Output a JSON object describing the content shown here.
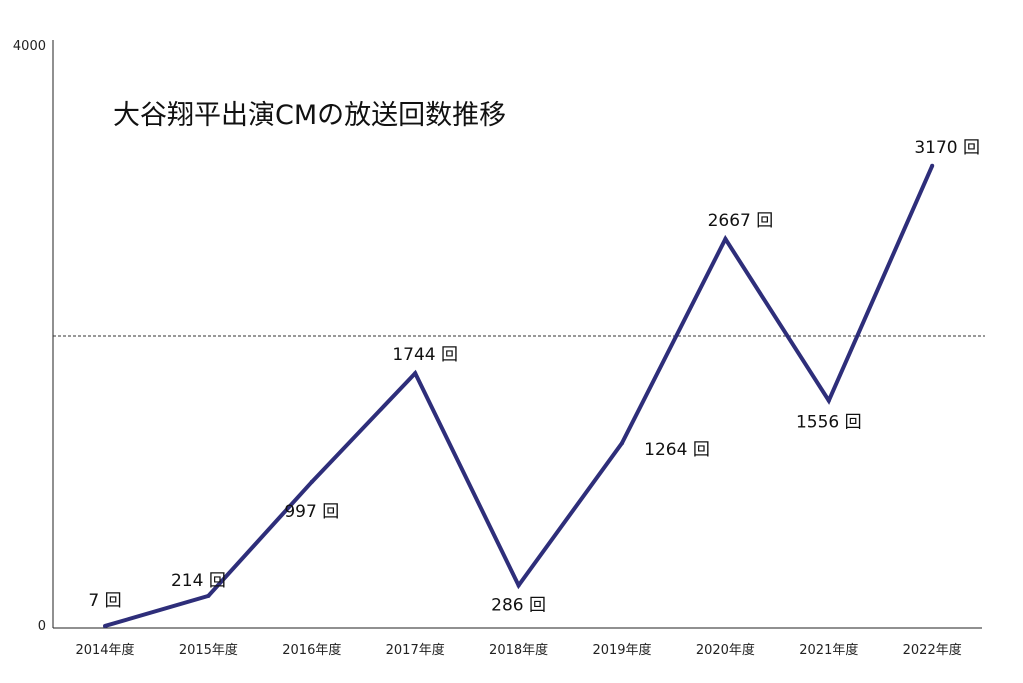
{
  "chart_data": {
    "type": "line",
    "title": "大谷翔平出演CMの放送回数推移",
    "xlabel": "",
    "ylabel": "",
    "categories": [
      "2014年度",
      "2015年度",
      "2016年度",
      "2017年度",
      "2018年度",
      "2019年度",
      "2020年度",
      "2021年度",
      "2022年度"
    ],
    "values": [
      7,
      214,
      997,
      1744,
      286,
      1264,
      2667,
      1556,
      3170
    ],
    "data_labels": [
      "7 回",
      "214 回",
      "997 回",
      "1744 回",
      "286 回",
      "1264 回",
      "2667 回",
      "1556 回",
      "3170 回"
    ],
    "ylim": [
      0,
      4000
    ],
    "y_tick_labels": [
      "0",
      "4000"
    ],
    "reference_line": 2000,
    "grid": false,
    "legend": "none",
    "line_color": "#2e2e7a",
    "reference_line_color": "#333333"
  }
}
